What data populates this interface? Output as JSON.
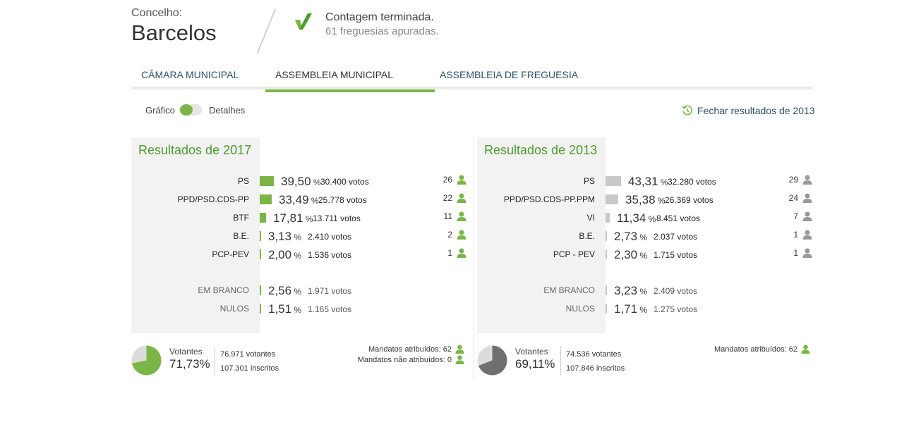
{
  "header": {
    "label": "Concelho:",
    "name": "Barcelos",
    "status_line1": "Contagem terminada.",
    "status_line2": "61 freguesias apuradas."
  },
  "tabs": [
    {
      "label": "CÂMARA MUNICIPAL",
      "active": false
    },
    {
      "label": "ASSEMBLEIA MUNICIPAL",
      "active": true
    },
    {
      "label": "ASSEMBLEIA DE FREGUESIA",
      "active": false
    }
  ],
  "view_toggle": {
    "left_label": "Gráfico",
    "right_label": "Detalhes"
  },
  "close_results": "Fechar resultados de 2013",
  "colors": {
    "green": "#7bb547",
    "title_green": "#4e9a2f",
    "grey_bar": "#c8c8c8",
    "grey_icon": "#999999"
  },
  "panels": [
    {
      "title": "Resultados de 2017",
      "parties": [
        {
          "name": "PS",
          "pct": "39,50",
          "votes": "30.400 votos",
          "seats": "26",
          "fraction": 0.395
        },
        {
          "name": "PPD/PSD.CDS-PP",
          "pct": "33,49",
          "votes": "25.778 votos",
          "seats": "22",
          "fraction": 0.3349
        },
        {
          "name": "BTF",
          "pct": "17,81",
          "votes": "13.711 votos",
          "seats": "11",
          "fraction": 0.1781
        },
        {
          "name": "B.E.",
          "pct": "3,13",
          "votes": "2.410 votos",
          "seats": "2",
          "fraction": 0.0313
        },
        {
          "name": "PCP-PEV",
          "pct": "2,00",
          "votes": "1.536 votos",
          "seats": "1",
          "fraction": 0.02
        }
      ],
      "others": [
        {
          "name": "EM BRANCO",
          "pct": "2,56",
          "votes": "1.971 votos",
          "fraction": 0.0256
        },
        {
          "name": "NULOS",
          "pct": "1,51",
          "votes": "1.165 votos",
          "fraction": 0.0151
        }
      ],
      "footer": {
        "votantes_label": "Votantes",
        "turnout_pct": "71,73%",
        "turnout_fraction": 0.7173,
        "votantes": "76.971 votantes",
        "inscritos": "107.301 inscritos",
        "mandatos_atribuidos": "Mandatos atribuídos: 62",
        "mandatos_nao_atribuidos": "Mandatos não atribuídos: 0"
      }
    },
    {
      "title": "Resultados de 2013",
      "parties": [
        {
          "name": "PS",
          "pct": "43,31",
          "votes": "32.280 votos",
          "seats": "29",
          "fraction": 0.4331
        },
        {
          "name": "PPD/PSD.CDS-PP.PPM",
          "pct": "35,38",
          "votes": "26.369 votos",
          "seats": "24",
          "fraction": 0.3538
        },
        {
          "name": "VI",
          "pct": "11,34",
          "votes": "8.451 votos",
          "seats": "7",
          "fraction": 0.1134
        },
        {
          "name": "B.E.",
          "pct": "2,73",
          "votes": "2.037 votos",
          "seats": "1",
          "fraction": 0.0273
        },
        {
          "name": "PCP - PEV",
          "pct": "2,30",
          "votes": "1.715 votos",
          "seats": "1",
          "fraction": 0.023
        }
      ],
      "others": [
        {
          "name": "EM BRANCO",
          "pct": "3,23",
          "votes": "2.409 votos",
          "fraction": 0.0323
        },
        {
          "name": "NULOS",
          "pct": "1,71",
          "votes": "1.275 votos",
          "fraction": 0.0171
        }
      ],
      "footer": {
        "votantes_label": "Votantes",
        "turnout_pct": "69,11%",
        "turnout_fraction": 0.6911,
        "votantes": "74.536 votantes",
        "inscritos": "107.846 inscritos",
        "mandatos_atribuidos": "Mandatos atribuídos: 62"
      }
    }
  ]
}
